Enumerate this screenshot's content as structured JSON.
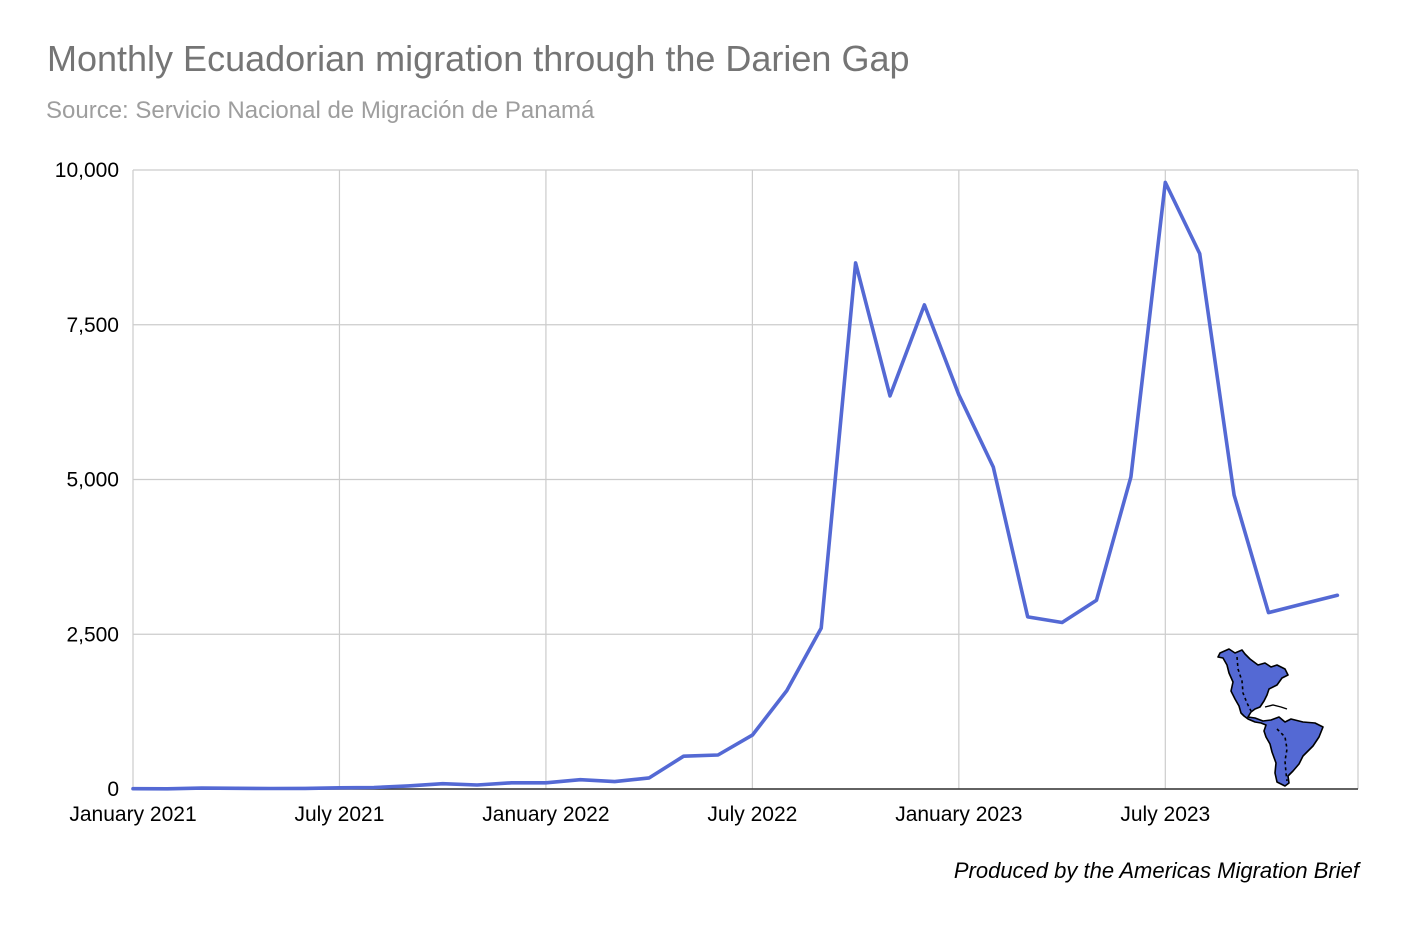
{
  "chart_data": {
    "type": "line",
    "title": "Monthly Ecuadorian migration through the Darien Gap",
    "subtitle": "Source: Servicio Nacional de Migración de Panamá",
    "footer": "Produced by the Americas Migration Brief",
    "xlabel": "",
    "ylabel": "",
    "ylim": [
      0,
      10000
    ],
    "y_ticks": [
      {
        "value": 0,
        "label": "0"
      },
      {
        "value": 2500,
        "label": "2,500"
      },
      {
        "value": 5000,
        "label": "5,000"
      },
      {
        "value": 7500,
        "label": "7,500"
      },
      {
        "value": 10000,
        "label": "10,000"
      }
    ],
    "x_ticks": [
      {
        "index": 0,
        "label": "January 2021"
      },
      {
        "index": 6,
        "label": "July 2021"
      },
      {
        "index": 12,
        "label": "January 2022"
      },
      {
        "index": 18,
        "label": "July 2022"
      },
      {
        "index": 24,
        "label": "January 2023"
      },
      {
        "index": 30,
        "label": "July 2023"
      }
    ],
    "grid": true,
    "legend": "none",
    "line_color": "#5469d4",
    "series": [
      {
        "x": [
          "2021-01",
          "2021-02",
          "2021-03",
          "2021-04",
          "2021-05",
          "2021-06",
          "2021-07",
          "2021-08",
          "2021-09",
          "2021-10",
          "2021-11",
          "2021-12",
          "2022-01",
          "2022-02",
          "2022-03",
          "2022-04",
          "2022-05",
          "2022-06",
          "2022-07",
          "2022-08",
          "2022-09",
          "2022-10",
          "2022-11",
          "2022-12",
          "2023-01",
          "2023-02",
          "2023-03",
          "2023-04",
          "2023-05",
          "2023-06",
          "2023-07",
          "2023-08",
          "2023-09",
          "2023-10",
          "2023-11",
          "2023-12"
        ],
        "values": [
          5,
          3,
          15,
          12,
          8,
          10,
          20,
          25,
          50,
          85,
          65,
          100,
          100,
          150,
          120,
          180,
          530,
          550,
          870,
          1590,
          2600,
          8500,
          6350,
          7820,
          6370,
          5200,
          2780,
          2690,
          3050,
          5040,
          9800,
          8650,
          4750,
          2850,
          2990,
          3130
        ]
      }
    ],
    "map_icon": "americas-map-icon"
  }
}
